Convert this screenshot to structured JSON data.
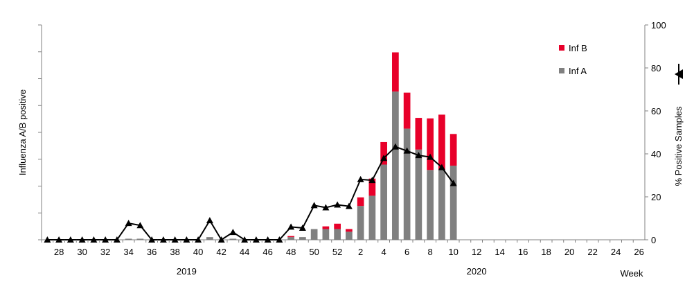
{
  "chart_data": {
    "type": "bar+line",
    "ylabel_left": "Influenza A/B positive",
    "ylabel_right": "% Positive Samples",
    "xlabel": "Week",
    "year_labels": [
      {
        "week_index": 12,
        "label": "2019"
      },
      {
        "week_index": 37,
        "label": "2020"
      }
    ],
    "left_axis": {
      "min": 0,
      "max": 40,
      "ticks": [
        0,
        5,
        10,
        15,
        20,
        25,
        30,
        35,
        40
      ],
      "show_tick_labels": false
    },
    "right_axis": {
      "min": 0,
      "max": 100,
      "ticks": [
        0,
        20,
        40,
        60,
        80,
        100
      ]
    },
    "weeks": [
      "27",
      "28",
      "29",
      "30",
      "31",
      "32",
      "33",
      "34",
      "35",
      "36",
      "37",
      "38",
      "39",
      "40",
      "41",
      "42",
      "43",
      "44",
      "45",
      "46",
      "47",
      "48",
      "49",
      "50",
      "51",
      "52",
      "1",
      "2",
      "3",
      "4",
      "5",
      "6",
      "7",
      "8",
      "9",
      "10",
      "11",
      "12",
      "13",
      "14",
      "15",
      "16",
      "17",
      "18",
      "19",
      "20",
      "21",
      "22",
      "23",
      "24",
      "25",
      "26"
    ],
    "x_tick_labels": [
      "28",
      "30",
      "32",
      "34",
      "36",
      "38",
      "40",
      "42",
      "44",
      "46",
      "48",
      "50",
      "52",
      "2",
      "4",
      "6",
      "8",
      "10",
      "12",
      "14",
      "16",
      "18",
      "20",
      "22",
      "24",
      "26"
    ],
    "series": [
      {
        "name": "Inf A",
        "color": "#808080",
        "values": [
          0,
          0,
          0,
          0,
          0,
          0,
          0,
          0.2,
          0.2,
          0,
          0,
          0,
          0,
          0,
          0.5,
          0,
          0.2,
          0,
          0,
          0,
          0,
          0.5,
          0.5,
          2,
          2,
          2,
          1.5,
          6.3,
          8.2,
          14,
          27.6,
          20.7,
          16.8,
          13,
          13,
          13.8,
          0,
          0,
          0,
          0,
          0,
          0,
          0,
          0,
          0,
          0,
          0,
          0,
          0,
          0,
          0,
          0
        ]
      },
      {
        "name": "Inf B",
        "color": "#e8002a",
        "values": [
          0,
          0,
          0,
          0,
          0,
          0,
          0,
          0,
          0,
          0,
          0,
          0,
          0,
          0,
          0,
          0,
          0,
          0,
          0,
          0,
          0,
          0.2,
          0,
          0,
          0.5,
          1,
          0.5,
          1.6,
          3.2,
          4.2,
          7.3,
          6.7,
          5.9,
          9.6,
          10.3,
          5.9,
          0,
          0,
          0,
          0,
          0,
          0,
          0,
          0,
          0,
          0,
          0,
          0,
          0,
          0,
          0,
          0
        ]
      },
      {
        "name": "% Positive Samples",
        "axis": "right",
        "color": "#000000",
        "values": [
          0,
          0,
          0,
          0,
          0,
          0,
          0,
          7.7,
          6.7,
          0,
          0,
          0,
          0,
          0,
          9,
          0,
          3.5,
          0,
          0,
          0,
          0,
          6,
          5.5,
          16,
          15,
          16.3,
          15.6,
          28.1,
          27.7,
          38,
          43.3,
          41.4,
          39.3,
          38.5,
          33.7,
          26.3,
          null,
          null,
          null,
          null,
          null,
          null,
          null,
          null,
          null,
          null,
          null,
          null,
          null,
          null,
          null,
          null
        ]
      }
    ],
    "legend": [
      {
        "label": "Inf B",
        "color": "#e8002a"
      },
      {
        "label": "Inf A",
        "color": "#808080"
      }
    ],
    "legend_position": "top-right",
    "grid": false
  }
}
